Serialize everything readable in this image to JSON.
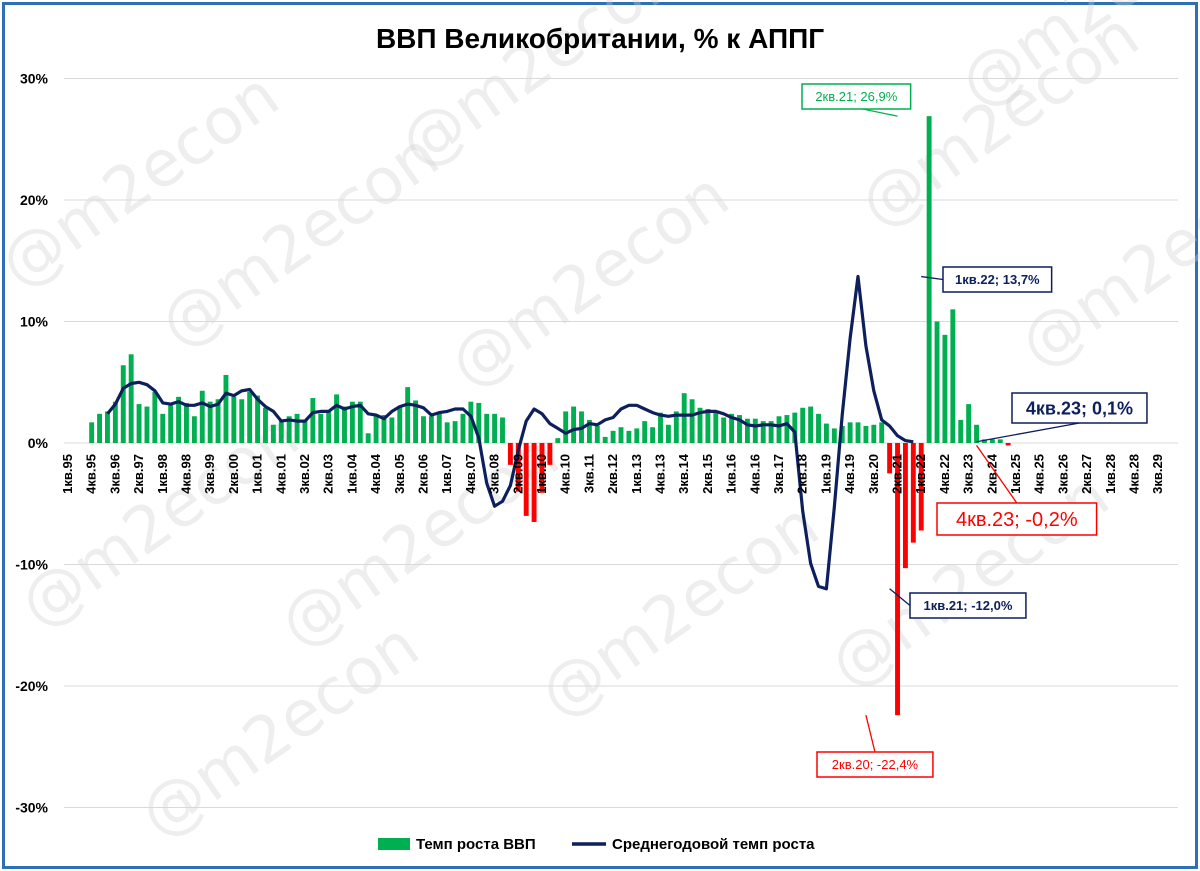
{
  "chart_data": {
    "type": "bar",
    "title": "ВВП Великобритании, % к АППГ",
    "ylim": [
      -30,
      30
    ],
    "yticks": [
      {
        "v": 30,
        "label": "30%"
      },
      {
        "v": 20,
        "label": "20%"
      },
      {
        "v": 10,
        "label": "10%"
      },
      {
        "v": 0,
        "label": "0%"
      },
      {
        "v": -10,
        "label": "-10%"
      },
      {
        "v": -20,
        "label": "-20%"
      },
      {
        "v": -30,
        "label": "-30%"
      }
    ],
    "x_start_label": "1кв.95",
    "x_tick_labels": [
      "1кв.95",
      "4кв.95",
      "3кв.96",
      "2кв.97",
      "1кв.98",
      "4кв.98",
      "3кв.99",
      "2кв.00",
      "1кв.01",
      "4кв.01",
      "3кв.02",
      "2кв.03",
      "1кв.04",
      "4кв.04",
      "3кв.05",
      "2кв.06",
      "1кв.07",
      "4кв.07",
      "3кв.08",
      "2кв.09",
      "1кв.10",
      "4кв.10",
      "3кв.11",
      "2кв.12",
      "1кв.13",
      "4кв.13",
      "3кв.14",
      "2кв.15",
      "1кв.16",
      "4кв.16",
      "3кв.17",
      "2кв.18",
      "1кв.19",
      "4кв.19",
      "3кв.20",
      "2кв.21",
      "1кв.22",
      "4кв.22",
      "3кв.23",
      "2кв.24",
      "1кв.25",
      "4кв.25",
      "3кв.26",
      "2кв.27",
      "1кв.28",
      "4кв.28",
      "3кв.29"
    ],
    "positive_color": "#00b050",
    "negative_color": "#ff0000",
    "line_color": "#0d1f5c",
    "series": [
      {
        "name": "Темп роста ВВП",
        "type": "bar",
        "start_index": 3,
        "values": [
          1.7,
          2.4,
          2.6,
          3.4,
          6.4,
          7.3,
          3.2,
          3.0,
          4.2,
          2.4,
          3.2,
          3.8,
          3.3,
          2.2,
          4.3,
          3.4,
          3.6,
          5.6,
          3.8,
          3.6,
          4.2,
          3.9,
          2.9,
          1.5,
          1.8,
          2.2,
          2.4,
          1.8,
          3.7,
          2.4,
          2.7,
          4.0,
          3.0,
          3.4,
          3.4,
          0.8,
          2.3,
          2.3,
          2.1,
          3.0,
          4.6,
          3.5,
          2.2,
          2.2,
          2.4,
          1.7,
          1.8,
          2.4,
          3.4,
          3.3,
          2.4,
          2.4,
          2.1,
          -1.8,
          -4.0,
          -6.0,
          -6.5,
          -4.1,
          -1.8,
          0.4,
          2.6,
          3.0,
          2.6,
          1.9,
          1.4,
          0.5,
          1.0,
          1.3,
          1.0,
          1.2,
          1.8,
          1.3,
          2.5,
          1.5,
          2.6,
          4.1,
          3.6,
          2.9,
          2.8,
          2.6,
          2.1,
          2.4,
          2.3,
          2.0,
          2.0,
          1.8,
          1.8,
          2.2,
          2.3,
          2.5,
          2.9,
          3.0,
          2.4,
          1.6,
          1.2,
          1.4,
          1.7,
          1.7,
          1.4,
          1.5,
          1.7,
          -2.5,
          -22.4,
          -10.3,
          -8.2,
          -7.2,
          26.9,
          10.0,
          8.9,
          11.0,
          1.9,
          3.2,
          1.5,
          0.3,
          0.3,
          0.3,
          -0.2
        ]
      },
      {
        "name": "Среднегодовой темп роста",
        "type": "line",
        "start_index": 5,
        "values": [
          2.4,
          3.2,
          4.5,
          4.9,
          5.0,
          4.8,
          4.3,
          3.3,
          3.2,
          3.4,
          3.1,
          3.1,
          3.3,
          3.0,
          3.2,
          4.1,
          3.9,
          4.3,
          4.4,
          3.6,
          3.0,
          2.6,
          1.8,
          1.9,
          1.8,
          1.8,
          2.5,
          2.6,
          2.6,
          3.1,
          2.8,
          3.0,
          3.1,
          2.4,
          2.3,
          2.0,
          2.6,
          3.0,
          3.2,
          3.1,
          2.9,
          2.3,
          2.5,
          2.6,
          2.8,
          2.8,
          2.2,
          0.4,
          -3.3,
          -5.2,
          -4.8,
          -3.5,
          -0.6,
          1.8,
          2.8,
          2.4,
          1.6,
          1.2,
          0.8,
          1.1,
          1.2,
          1.6,
          1.5,
          1.9,
          2.1,
          2.8,
          3.1,
          3.1,
          2.8,
          2.5,
          2.3,
          2.2,
          2.3,
          2.3,
          2.3,
          2.5,
          2.6,
          2.6,
          2.4,
          2.1,
          1.9,
          1.5,
          1.4,
          1.5,
          1.5,
          1.4,
          1.6,
          0.9,
          -5.6,
          -9.9,
          -11.8,
          -12.0,
          -5.3,
          2.3,
          8.6,
          13.7,
          8.0,
          4.3,
          1.9,
          1.4,
          0.6,
          0.2,
          0.1
        ]
      }
    ],
    "annotations": [
      {
        "text": "2кв.21; 26,9%",
        "series": 0,
        "point_label": "2кв.21",
        "value": 26.9,
        "color": "#00b050"
      },
      {
        "text": "1кв.22; 13,7%",
        "series": 1,
        "point_label": "1кв.22",
        "value": 13.7,
        "color": "#0d1f5c"
      },
      {
        "text": "4кв.23; 0,1%",
        "series": 1,
        "point_label": "4кв.23",
        "value": 0.1,
        "color": "#0d1f5c"
      },
      {
        "text": "4кв.23; -0,2%",
        "series": 0,
        "point_label": "4кв.23",
        "value": -0.2,
        "color": "#ff0000"
      },
      {
        "text": "1кв.21; -12,0%",
        "series": 1,
        "point_label": "1кв.21",
        "value": -12.0,
        "color": "#0d1f5c"
      },
      {
        "text": "2кв.20; -22,4%",
        "series": 0,
        "point_label": "2кв.20",
        "value": -22.4,
        "color": "#ff0000"
      }
    ],
    "legend_position": "bottom",
    "watermark": "@m2econ"
  }
}
